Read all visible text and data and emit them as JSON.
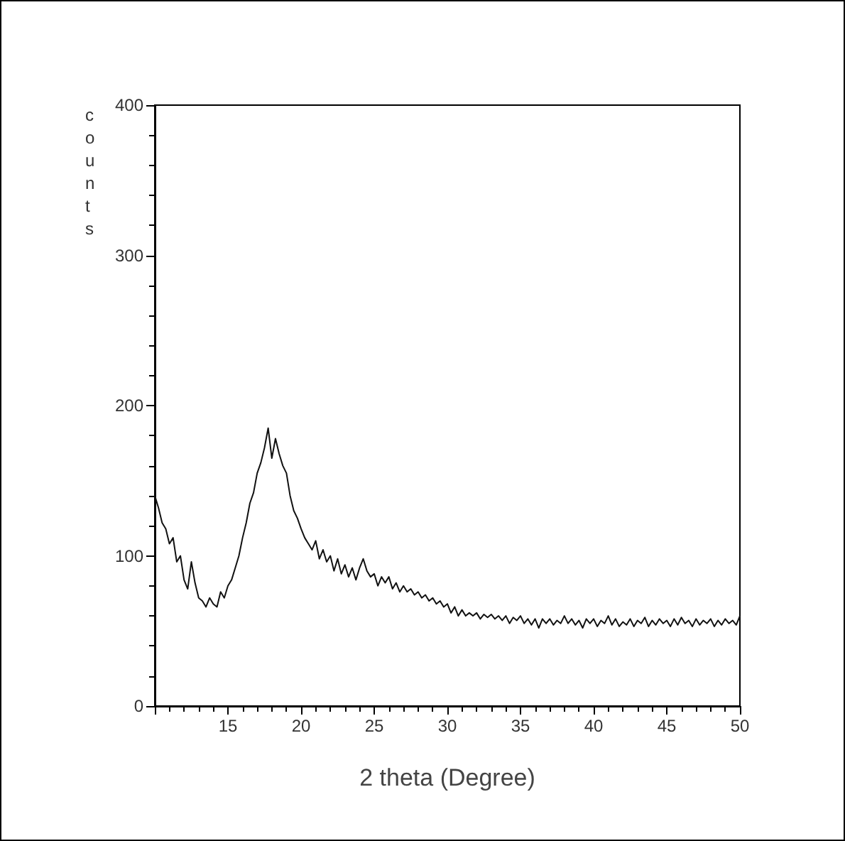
{
  "chart_data": {
    "type": "line",
    "xlabel": "2 theta (Degree)",
    "ylabel": "counts",
    "color": "#111111",
    "x": [
      10,
      10.25,
      10.5,
      10.75,
      11,
      11.25,
      11.5,
      11.75,
      12,
      12.25,
      12.5,
      12.75,
      13,
      13.25,
      13.5,
      13.75,
      14,
      14.25,
      14.5,
      14.75,
      15,
      15.25,
      15.5,
      15.75,
      16,
      16.25,
      16.5,
      16.75,
      17,
      17.25,
      17.5,
      17.75,
      18,
      18.25,
      18.5,
      18.75,
      19,
      19.25,
      19.5,
      19.75,
      20,
      20.25,
      20.5,
      20.75,
      21,
      21.25,
      21.5,
      21.75,
      22,
      22.25,
      22.5,
      22.75,
      23,
      23.25,
      23.5,
      23.75,
      24,
      24.25,
      24.5,
      24.75,
      25,
      25.25,
      25.5,
      25.75,
      26,
      26.25,
      26.5,
      26.75,
      27,
      27.25,
      27.5,
      27.75,
      28,
      28.25,
      28.5,
      28.75,
      29,
      29.25,
      29.5,
      29.75,
      30,
      30.25,
      30.5,
      30.75,
      31,
      31.25,
      31.5,
      31.75,
      32,
      32.25,
      32.5,
      32.75,
      33,
      33.25,
      33.5,
      33.75,
      34,
      34.25,
      34.5,
      34.75,
      35,
      35.25,
      35.5,
      35.75,
      36,
      36.25,
      36.5,
      36.75,
      37,
      37.25,
      37.5,
      37.75,
      38,
      38.25,
      38.5,
      38.75,
      39,
      39.25,
      39.5,
      39.75,
      40,
      40.25,
      40.5,
      40.75,
      41,
      41.25,
      41.5,
      41.75,
      42,
      42.25,
      42.5,
      42.75,
      43,
      43.25,
      43.5,
      43.75,
      44,
      44.25,
      44.5,
      44.75,
      45,
      45.25,
      45.5,
      45.75,
      46,
      46.25,
      46.5,
      46.75,
      47,
      47.25,
      47.5,
      47.75,
      48,
      48.25,
      48.5,
      48.75,
      49,
      49.25,
      49.5,
      49.75,
      50
    ],
    "values": [
      140,
      132,
      122,
      118,
      108,
      112,
      96,
      100,
      84,
      78,
      96,
      82,
      72,
      70,
      66,
      72,
      68,
      66,
      76,
      72,
      80,
      84,
      92,
      100,
      112,
      122,
      135,
      142,
      155,
      162,
      172,
      185,
      165,
      178,
      168,
      160,
      155,
      140,
      130,
      125,
      118,
      112,
      108,
      104,
      110,
      98,
      104,
      96,
      100,
      90,
      98,
      88,
      94,
      86,
      92,
      84,
      92,
      98,
      90,
      86,
      88,
      80,
      86,
      82,
      86,
      78,
      82,
      76,
      80,
      76,
      78,
      74,
      76,
      72,
      74,
      70,
      72,
      68,
      70,
      66,
      68,
      62,
      66,
      60,
      64,
      60,
      62,
      60,
      62,
      58,
      61,
      59,
      61,
      58,
      60,
      57,
      60,
      55,
      59,
      57,
      60,
      55,
      58,
      54,
      58,
      52,
      58,
      55,
      58,
      54,
      57,
      55,
      60,
      55,
      58,
      54,
      57,
      52,
      58,
      55,
      58,
      53,
      57,
      55,
      60,
      54,
      58,
      53,
      56,
      54,
      58,
      53,
      57,
      55,
      59,
      53,
      57,
      54,
      58,
      55,
      57,
      53,
      58,
      54,
      59,
      55,
      57,
      53,
      58,
      54,
      57,
      55,
      58,
      53,
      57,
      54,
      58,
      55,
      57,
      54,
      60
    ],
    "xlim": [
      10,
      50
    ],
    "xticks": [
      {
        "value": 10,
        "label": null
      },
      15,
      20,
      25,
      30,
      35,
      40,
      45,
      50
    ],
    "ylim": [
      0,
      400
    ],
    "yticks": [
      0,
      100,
      200,
      300,
      400
    ],
    "grid": false,
    "marker": "none",
    "line_style": "solid"
  }
}
